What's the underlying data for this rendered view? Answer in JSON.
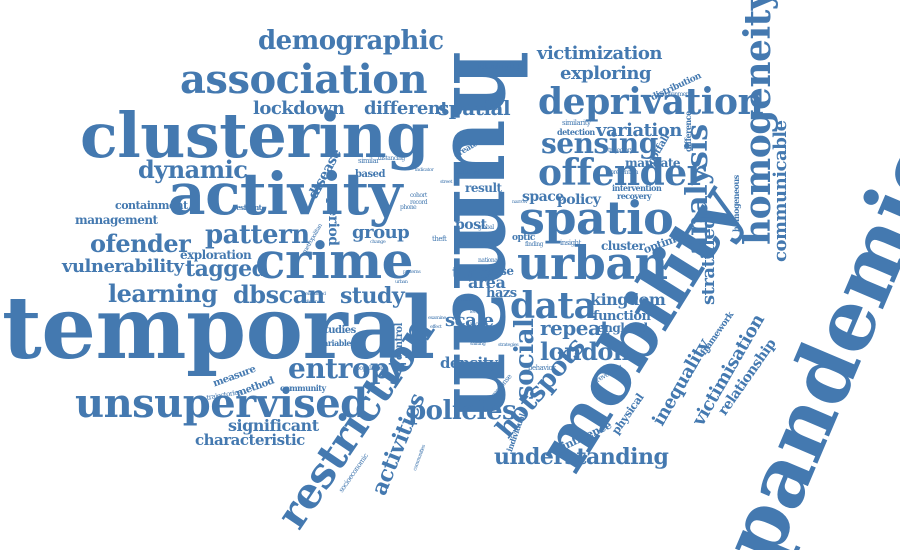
{
  "words": {
    "temporal": "temporal",
    "human": "human",
    "pandemic": "pandemic",
    "mobility": "mobility",
    "clustering": "clustering",
    "activity": "activity",
    "crime": "crime",
    "association": "association",
    "deprivation": "deprivation",
    "urban": "urban",
    "spatio": "spatio",
    "offender": "offender",
    "homogeneity": "homogeneity",
    "unsupervised": "unsupervised",
    "restriction": "restriction",
    "demographic": "demographic",
    "analysis": "analysis",
    "sensing": "sensing",
    "data": "data",
    "entropy": "entropy",
    "dbscan": "dbscan",
    "learning": "learning",
    "tagged": "tagged",
    "pattern": "pattern",
    "ofender": "ofender",
    "dynamic": "dynamic",
    "vulnerability": "vulnerability",
    "study": "study",
    "policies": "policies",
    "hotspots": "hotspots",
    "social": "social",
    "london": "london",
    "understanding": "understanding",
    "exploring": "exploring",
    "victimization": "victimization",
    "lockdown": "lockdown",
    "different": "different",
    "spatial": "spatial",
    "variation": "variation",
    "communicable": "communicable",
    "stratified": "stratified",
    "inequality": "inequality",
    "victimisation": "victimisation",
    "relationship": "relationship",
    "significant": "significant",
    "characteristic": "characteristic",
    "activities": "activities",
    "repeat": "repeat",
    "kingdom": "kingdom",
    "function": "function",
    "england": "england",
    "density": "density",
    "group": "group",
    "period": "period",
    "scale": "scale",
    "area": "area",
    "time": "time",
    "case": "case",
    "post": "post",
    "zone": "zone",
    "result": "result",
    "space": "space",
    "policy": "policy",
    "cluster": "cluster",
    "optimal": "optimal",
    "mandate": "mandate",
    "footfall": "footfall",
    "disease": "disease",
    "containment": "containment",
    "management": "management",
    "exploration": "exploration",
    "measure": "measure",
    "method": "method",
    "studies": "studies",
    "variable": "variable",
    "control": "control",
    "hazs": "hazs",
    "identifying": "identifying",
    "distribution": "distribution",
    "environment": "environment",
    "similarity": "similarity",
    "detection": "detection",
    "recovery": "recovery",
    "intervention": "intervention",
    "difference": "difference",
    "homogeneous": "homogeneous",
    "framework": "framework",
    "influence": "influence",
    "physical": "physical",
    "revealing": "revealing",
    "individual": "individual",
    "response": "response",
    "behavior": "behavior",
    "community": "community",
    "trajectories": "trajectories",
    "socioeconomic": "socioeconomic",
    "population": "population",
    "resident": "resident",
    "greater": "greater",
    "based": "based",
    "similar": "similar",
    "distancing": "distancing",
    "optic": "optic",
    "insight": "insight",
    "finding": "finding",
    "theft": "theft",
    "national": "national",
    "mobile": "mobile",
    "record": "record",
    "cohort": "cohort",
    "phone": "phone",
    "change": "change",
    "metropolitan": "metropolitan",
    "trajectory": "trajectory",
    "prevention": "prevention",
    "shifting": "shifting",
    "strategies": "strategies",
    "indicator": "indicator",
    "statistical": "statistical",
    "enhanced": "enhanced",
    "distance": "distance",
    "global": "global",
    "specific": "specific",
    "communities": "communities",
    "examine": "examine",
    "effect": "effect",
    "narrow": "narrow",
    "street": "street",
    "pattern_s": "patterns",
    "urban_s": "urban",
    "level": "level"
  },
  "colors": {
    "word": "#4479b0",
    "background": "#ffffff"
  }
}
